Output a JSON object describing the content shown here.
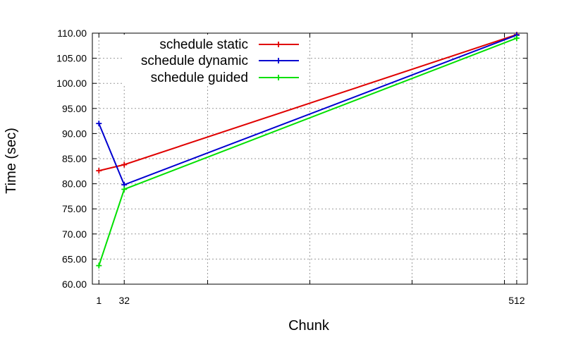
{
  "chart_data": {
    "type": "line",
    "xlabel": "Chunk",
    "ylabel": "Time (sec)",
    "x_ticks": [
      1,
      32,
      512
    ],
    "x_tick_labels": [
      "1",
      "32",
      "512"
    ],
    "xlim": [
      -7,
      525
    ],
    "ylim": [
      60,
      110
    ],
    "y_ticks": [
      60,
      65,
      70,
      75,
      80,
      85,
      90,
      95,
      100,
      105,
      110
    ],
    "y_tick_labels": [
      "60.00",
      "65.00",
      "70.00",
      "75.00",
      "80.00",
      "85.00",
      "90.00",
      "95.00",
      "100.00",
      "105.00",
      "110.00"
    ],
    "grid": true,
    "legend_position": "top",
    "series": [
      {
        "name": "schedule static",
        "color": "#e00000",
        "x": [
          1,
          32,
          512
        ],
        "y": [
          82.6,
          83.8,
          109.7
        ]
      },
      {
        "name": "schedule dynamic",
        "color": "#0000d0",
        "x": [
          1,
          32,
          512
        ],
        "y": [
          92.0,
          79.8,
          109.6
        ]
      },
      {
        "name": "schedule guided",
        "color": "#00e000",
        "x": [
          1,
          32,
          512
        ],
        "y": [
          63.7,
          78.9,
          109.0
        ]
      }
    ]
  }
}
